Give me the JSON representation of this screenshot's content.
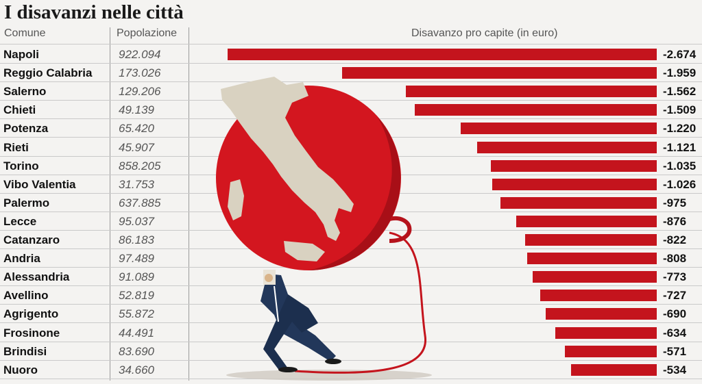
{
  "title": "I disavanzi nelle città",
  "headers": {
    "comune": "Comune",
    "popolazione": "Popolazione",
    "disavanzo": "Disavanzo pro capite (in euro)"
  },
  "colors": {
    "bar": "#c4141d",
    "background": "#f4f3f1"
  },
  "chart_data": {
    "type": "bar",
    "orientation": "horizontal",
    "title": "I disavanzi nelle città",
    "xlabel": "Disavanzo pro capite (in euro)",
    "categories": [
      "Napoli",
      "Reggio Calabria",
      "Salerno",
      "Chieti",
      "Potenza",
      "Rieti",
      "Torino",
      "Vibo Valentia",
      "Palermo",
      "Lecce",
      "Catanzaro",
      "Andria",
      "Alessandria",
      "Avellino",
      "Agrigento",
      "Frosinone",
      "Brindisi",
      "Nuoro"
    ],
    "values": [
      -2674,
      -1959,
      -1562,
      -1509,
      -1220,
      -1121,
      -1035,
      -1026,
      -975,
      -876,
      -822,
      -808,
      -773,
      -727,
      -690,
      -634,
      -571,
      -534
    ],
    "value_labels": [
      "-2.674",
      "-1.959",
      "-1.562",
      "-1.509",
      "-1.220",
      "-1.121",
      "-1.035",
      "-1.026",
      "-975",
      "-876",
      "-822",
      "-808",
      "-773",
      "-727",
      "-690",
      "-634",
      "-571",
      "-534"
    ],
    "population_labels": [
      "922.094",
      "173.026",
      "129.206",
      "49.139",
      "65.420",
      "45.907",
      "858.205",
      "31.753",
      "637.885",
      "95.037",
      "86.183",
      "97.489",
      "91.089",
      "52.819",
      "55.872",
      "44.491",
      "83.690",
      "34.660"
    ],
    "grid": false
  }
}
